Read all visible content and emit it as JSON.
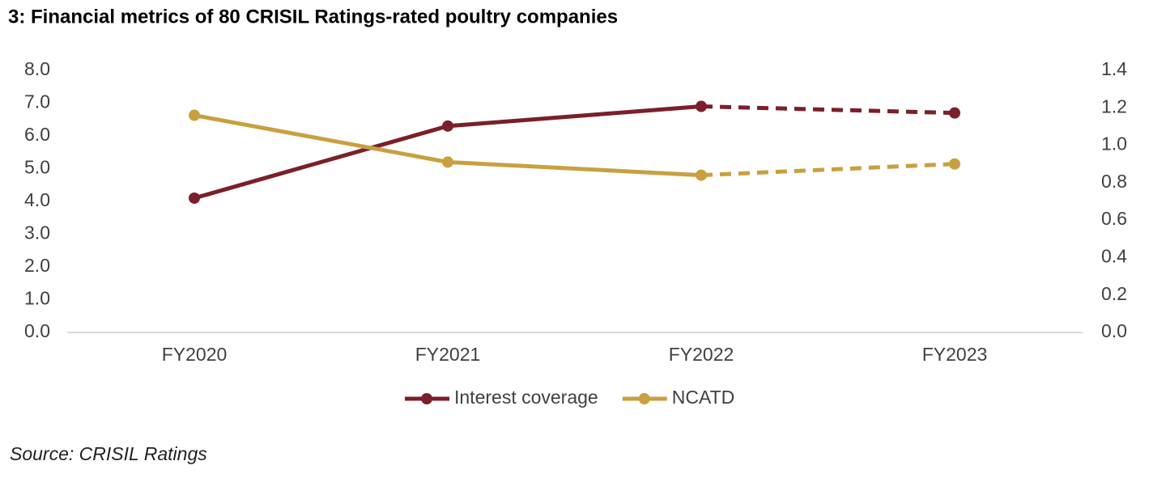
{
  "chart_data": {
    "type": "line",
    "title": "3: Financial metrics of 80 CRISIL Ratings-rated poultry companies",
    "categories": [
      "FY2020",
      "FY2021",
      "FY2022",
      "FY2023"
    ],
    "series": [
      {
        "name": "Interest coverage",
        "color": "#7b1f2a",
        "values": [
          4.1,
          6.3,
          6.9,
          6.7
        ]
      },
      {
        "name": "NCATD",
        "color": "#c9a040",
        "values": [
          1.16,
          0.91,
          0.84,
          0.9
        ],
        "axis": "y2"
      }
    ],
    "dashed_from_index": 2,
    "ylim": [
      0,
      8
    ],
    "yticks": [
      {
        "value": 0,
        "label": "0.0"
      },
      {
        "value": 1,
        "label": "1.0"
      },
      {
        "value": 2,
        "label": "2.0"
      },
      {
        "value": 3,
        "label": "3.0"
      },
      {
        "value": 4,
        "label": "4.0"
      },
      {
        "value": 5,
        "label": "5.0"
      },
      {
        "value": 6,
        "label": "6.0"
      },
      {
        "value": 7,
        "label": "7.0"
      },
      {
        "value": 8,
        "label": "8.0"
      }
    ],
    "y2lim": [
      0,
      1.4
    ],
    "y2ticks": [
      {
        "value": 0,
        "label": "0.0"
      },
      0.2,
      0.4,
      0.6,
      0.8,
      {
        "value": 1,
        "label": "1.0"
      },
      1.2,
      1.4
    ],
    "legend": "bottom",
    "source": "Source: CRISIL Ratings"
  }
}
